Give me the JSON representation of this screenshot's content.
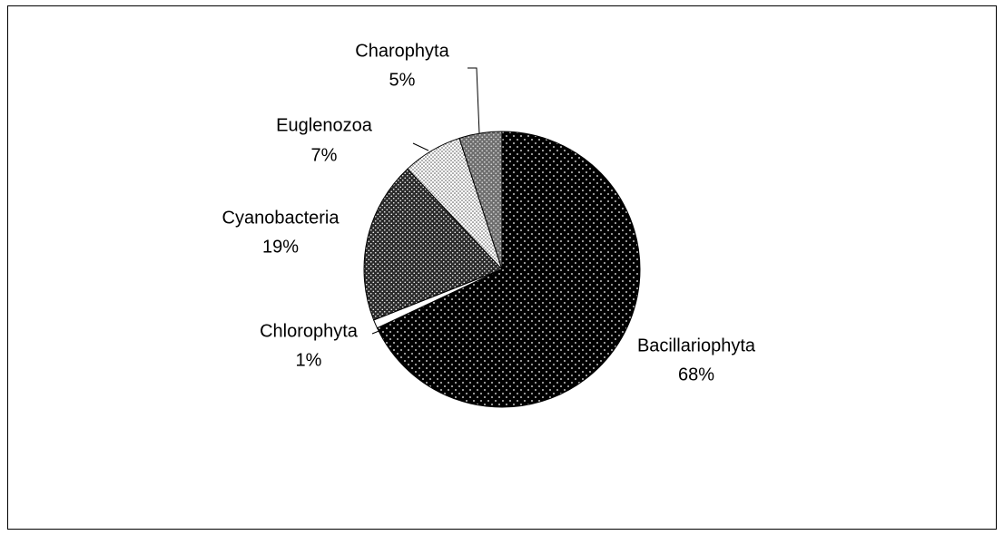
{
  "chart_data": {
    "type": "pie",
    "categories": [
      "Bacillariophyta",
      "Chlorophyta",
      "Cyanobacteria",
      "Euglenozoa",
      "Charophyta"
    ],
    "values": [
      68,
      1,
      19,
      7,
      5
    ],
    "value_labels": [
      "68%",
      "1%",
      "19%",
      "7%",
      "5%"
    ],
    "colors": [
      "#000000",
      "#ffffff",
      "#2a2a2a",
      "#ffffff",
      "#6e6e6e"
    ]
  }
}
